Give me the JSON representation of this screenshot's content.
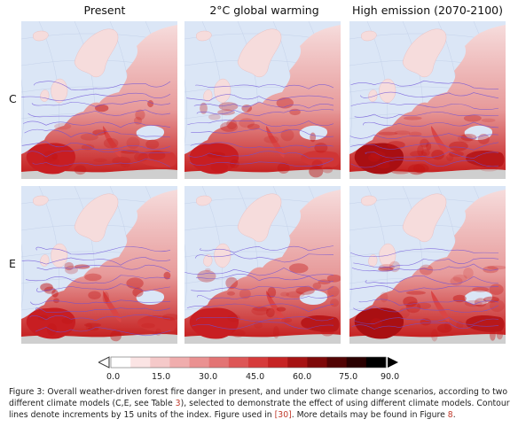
{
  "columns": [
    {
      "title": "Present"
    },
    {
      "title": "2°C global warming"
    },
    {
      "title": "High emission (2070-2100)"
    }
  ],
  "rows": [
    {
      "label": "C"
    },
    {
      "label": "E"
    }
  ],
  "colorbar": {
    "ticks": [
      "0.0",
      "15.0",
      "30.0",
      "45.0",
      "60.0",
      "75.0",
      "90.0"
    ],
    "colors": [
      "#ffffff",
      "#fbe4e4",
      "#f5c9c9",
      "#f0adad",
      "#ea9191",
      "#e37474",
      "#dd5656",
      "#d63b3b",
      "#c62424",
      "#a61313",
      "#7e0909",
      "#520404",
      "#2a0101",
      "#000000"
    ],
    "ocean_color": "#dbe6f6",
    "land_low": "#f6dcdc",
    "land_mid": "#e79a9a",
    "land_high": "#c21414",
    "contour_color": "#6b4fd8"
  },
  "caption": {
    "lead": "Figure 3: Overall weather-driven forest fire danger in present, and under two climate change scenarios, according to two different climate models (C,E, see Table ",
    "table_ref": "3",
    "mid": "), selected to demonstrate the effect of using different climate models. Contour lines denote increments by 15 units of the index. Figure used in ",
    "cite_ref": "[30]",
    "mid2": ". More details may be found in Figure ",
    "fig_ref": "8",
    "end": "."
  }
}
